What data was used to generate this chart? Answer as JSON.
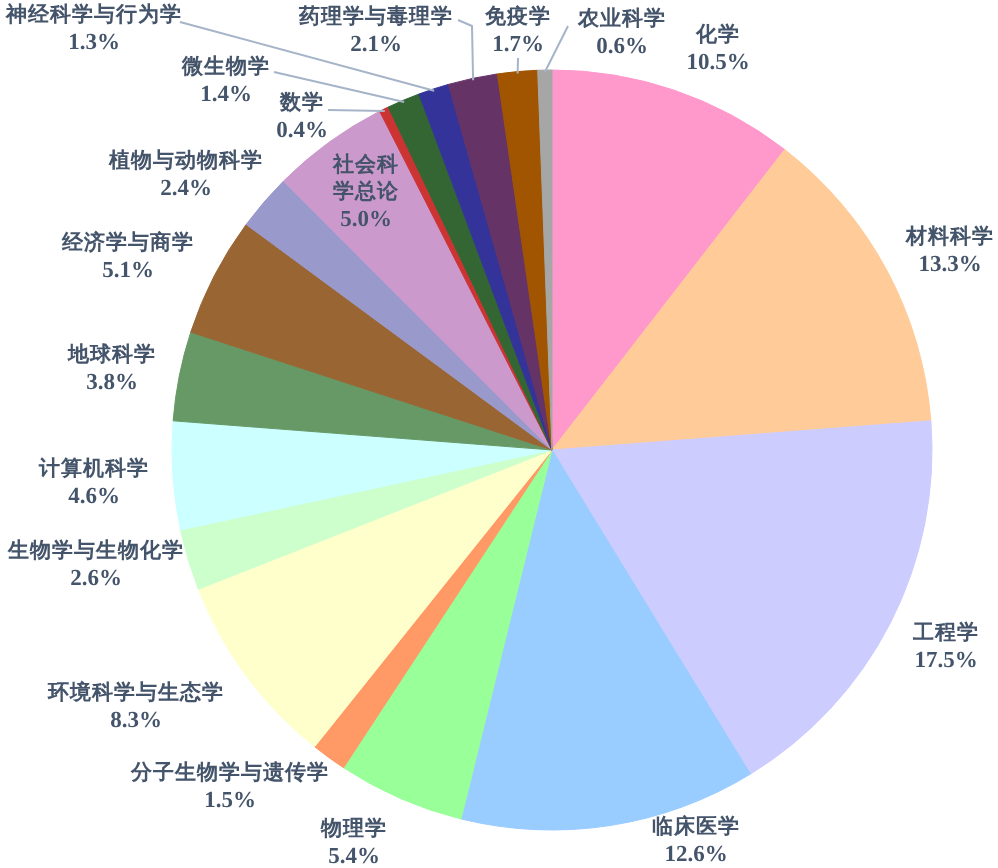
{
  "chart_data": {
    "type": "pie",
    "categories": [
      "化学",
      "材料科学",
      "工程学",
      "临床医学",
      "物理学",
      "分子生物学与遗传学",
      "环境科学与生态学",
      "生物学与生物化学",
      "计算机科学",
      "地球科学",
      "经济学与商学",
      "植物与动物科学",
      "社会科学总论",
      "数学",
      "微生物学",
      "神经科学与行为学",
      "药理学与毒理学",
      "免疫学",
      "农业科学"
    ],
    "values": [
      10.5,
      13.3,
      17.5,
      12.6,
      5.4,
      1.5,
      8.3,
      2.6,
      4.6,
      3.8,
      5.1,
      2.4,
      5.0,
      0.4,
      1.4,
      1.3,
      2.1,
      1.7,
      0.6
    ],
    "colors": [
      "#ff99cc",
      "#ffcc99",
      "#ccccff",
      "#99ccff",
      "#99ff99",
      "#ff9966",
      "#ffffcc",
      "#ccffcc",
      "#ccffff",
      "#669966",
      "#996633",
      "#9999cc",
      "#cc99cc",
      "#cc3333",
      "#336633",
      "#333399",
      "#663366",
      "#a15500",
      "#a6a6a6"
    ],
    "value_labels": [
      "10.5%",
      "13.3%",
      "17.5%",
      "12.6%",
      "5.4%",
      "1.5%",
      "8.3%",
      "2.6%",
      "4.6%",
      "3.8%",
      "5.1%",
      "2.4%",
      "5.0%",
      "0.4%",
      "1.4%",
      "1.3%",
      "2.1%",
      "1.7%",
      "0.6%"
    ]
  }
}
